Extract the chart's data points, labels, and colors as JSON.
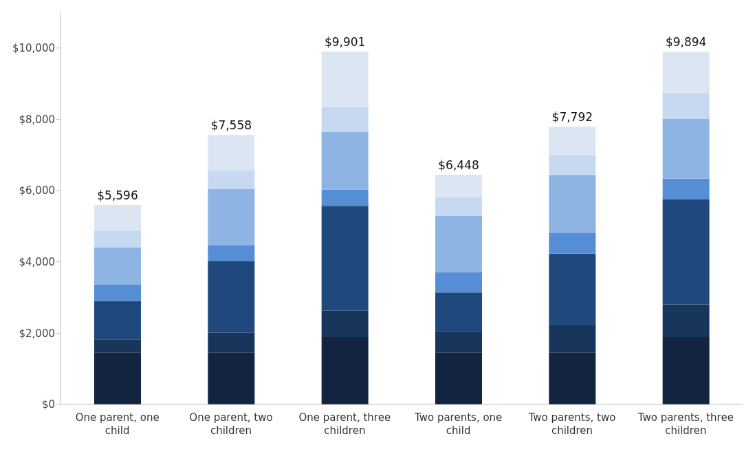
{
  "chart_data": {
    "type": "bar",
    "stacked": true,
    "categories": [
      "One parent, one child",
      "One parent, two children",
      "One parent, three children",
      "Two parents, one child",
      "Two parents, two children",
      "Two parents, three children"
    ],
    "series": [
      {
        "color": "#12243f",
        "values": [
          1460,
          1460,
          1890,
          1460,
          1460,
          1890
        ]
      },
      {
        "color": "#18355c",
        "values": [
          370,
          550,
          740,
          600,
          760,
          920
        ]
      },
      {
        "color": "#1f497d",
        "values": [
          1070,
          2020,
          2940,
          1080,
          2010,
          2940
        ]
      },
      {
        "color": "#558ed5",
        "values": [
          460,
          440,
          460,
          570,
          590,
          590
        ]
      },
      {
        "color": "#8eb4e3",
        "values": [
          1050,
          1580,
          1620,
          1580,
          1620,
          1680
        ]
      },
      {
        "color": "#c6d9f1",
        "values": [
          470,
          520,
          690,
          530,
          570,
          730
        ]
      },
      {
        "color": "#dce6f2",
        "values": [
          716,
          988,
          1561,
          628,
          782,
          1144
        ]
      }
    ],
    "totals": [
      "$5,596",
      "$7,558",
      "$9,901",
      "$6,448",
      "$7,792",
      "$9,894"
    ],
    "ylim": [
      0,
      11000
    ],
    "yticks": [
      {
        "value": 0,
        "label": "$0"
      },
      {
        "value": 2000,
        "label": "$2,000"
      },
      {
        "value": 4000,
        "label": "$4,000"
      },
      {
        "value": 6000,
        "label": "$6,000"
      },
      {
        "value": 8000,
        "label": "$8,000"
      },
      {
        "value": 10000,
        "label": "$10,000"
      }
    ],
    "grid": false,
    "legend": false
  }
}
